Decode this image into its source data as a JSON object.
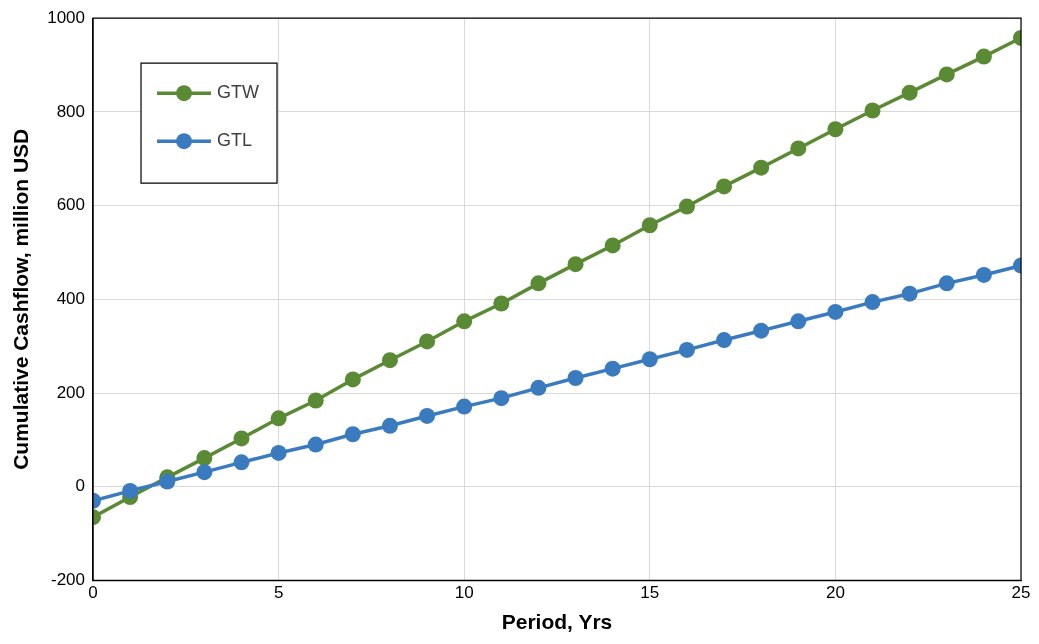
{
  "chart_data": {
    "type": "line",
    "xlabel": "Period, Yrs",
    "ylabel": "Cumulative Cashflow, million USD",
    "x": [
      0,
      1,
      2,
      3,
      4,
      5,
      6,
      7,
      8,
      9,
      10,
      11,
      12,
      13,
      14,
      15,
      16,
      17,
      18,
      19,
      20,
      21,
      22,
      23,
      24,
      25
    ],
    "series": [
      {
        "name": "GTW",
        "color": "#5b8a35",
        "values": [
          -65,
          -22,
          20,
          61,
          103,
          146,
          184,
          229,
          270,
          310,
          353,
          391,
          434,
          475,
          515,
          558,
          598,
          641,
          681,
          722,
          763,
          803,
          841,
          880,
          918,
          958
        ]
      },
      {
        "name": "GTL",
        "color": "#3a7bbf",
        "values": [
          -30,
          -9,
          11,
          31,
          52,
          72,
          90,
          112,
          130,
          151,
          171,
          189,
          211,
          232,
          252,
          272,
          292,
          313,
          333,
          353,
          373,
          394,
          412,
          434,
          452,
          472
        ]
      }
    ],
    "xlim": [
      0,
      25
    ],
    "xticks": [
      0,
      5,
      10,
      15,
      20,
      25
    ],
    "ylim": [
      -200,
      1000
    ],
    "yticks": [
      -200,
      0,
      200,
      400,
      600,
      800,
      1000
    ],
    "grid": true,
    "legend": "top left",
    "marker": "circle",
    "line_style": "solid"
  }
}
